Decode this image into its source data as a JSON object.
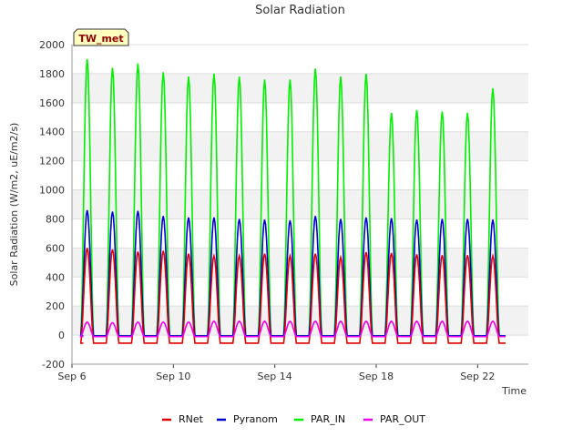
{
  "chart_data": {
    "type": "line",
    "title": "Solar Radiation",
    "xlabel": "Time",
    "ylabel": "Solar Radiation (W/m2, uE/m2/s)",
    "site_label": "TW_met",
    "ylim": [
      -200,
      2000
    ],
    "xlim": [
      0,
      18
    ],
    "y_ticks": [
      -200,
      0,
      200,
      400,
      600,
      800,
      1000,
      1200,
      1400,
      1600,
      1800,
      2000
    ],
    "x_ticks": [
      {
        "day": 0,
        "label": "Sep 6"
      },
      {
        "day": 4,
        "label": "Sep 10"
      },
      {
        "day": 8,
        "label": "Sep 14"
      },
      {
        "day": 12,
        "label": "Sep 18"
      },
      {
        "day": 16,
        "label": "Sep 22"
      }
    ],
    "grid": true,
    "legend_position": "bottom",
    "series": [
      {
        "name": "RNet",
        "color": "#dd0000",
        "night": -55,
        "peaks": [
          600,
          590,
          575,
          580,
          560,
          545,
          545,
          560,
          545,
          560,
          535,
          570,
          565,
          555,
          550,
          550,
          545
        ]
      },
      {
        "name": "Pyranom",
        "color": "#0000cc",
        "night": -5,
        "peaks": [
          860,
          850,
          855,
          820,
          810,
          810,
          800,
          795,
          790,
          820,
          800,
          810,
          805,
          795,
          800,
          800,
          795
        ]
      },
      {
        "name": "PAR_IN",
        "color": "#00ee00",
        "night": -5,
        "peaks": [
          1900,
          1840,
          1870,
          1810,
          1780,
          1800,
          1780,
          1760,
          1760,
          1835,
          1780,
          1800,
          1530,
          1550,
          1540,
          1530,
          1700
        ]
      },
      {
        "name": "PAR_OUT",
        "color": "#ee00ee",
        "night": -10,
        "peaks": [
          90,
          85,
          90,
          90,
          90,
          95,
          95,
          95,
          95,
          95,
          95,
          95,
          95,
          95,
          95,
          95,
          95
        ]
      }
    ],
    "day_centers": [
      0.6,
      1.6,
      2.6,
      3.6,
      4.6,
      5.6,
      6.6,
      7.6,
      8.6,
      9.6,
      10.6,
      11.6,
      12.6,
      13.6,
      14.6,
      15.6,
      16.6
    ]
  }
}
